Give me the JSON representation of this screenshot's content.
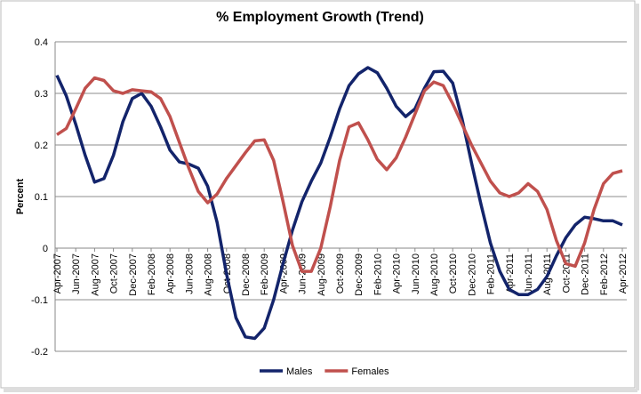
{
  "chart_data": {
    "type": "line",
    "title": "% Employment Growth (Trend)",
    "y_label": "Percent",
    "categories": [
      "Apr-2007",
      null,
      "Jun-2007",
      null,
      "Aug-2007",
      null,
      "Oct-2007",
      null,
      "Dec-2007",
      null,
      "Feb-2008",
      null,
      "Apr-2008",
      null,
      "Jun-2008",
      null,
      "Aug-2008",
      null,
      "Oct-2008",
      null,
      "Dec-2008",
      null,
      "Feb-2009",
      null,
      "Apr-2009",
      null,
      "Jun-2009",
      null,
      "Aug-2009",
      null,
      "Oct-2009",
      null,
      "Dec-2009",
      null,
      "Feb-2010",
      null,
      "Apr-2010",
      null,
      "Jun-2010",
      null,
      "Aug-2010",
      null,
      "Oct-2010",
      null,
      "Dec-2010",
      null,
      "Feb-2011",
      null,
      "Apr-2011",
      null,
      "Jun-2011",
      null,
      "Aug-2011",
      null,
      "Oct-2011",
      null,
      "Dec-2011",
      null,
      "Feb-2012",
      null,
      "Apr-2012"
    ],
    "series": [
      {
        "name": "Males",
        "color": "#13246b",
        "values": [
          0.335,
          0.295,
          0.24,
          0.18,
          0.128,
          0.135,
          0.18,
          0.245,
          0.29,
          0.3,
          0.275,
          0.235,
          0.19,
          0.167,
          0.163,
          0.155,
          0.12,
          0.05,
          -0.05,
          -0.135,
          -0.172,
          -0.175,
          -0.155,
          -0.1,
          -0.03,
          0.035,
          0.09,
          0.13,
          0.165,
          0.215,
          0.27,
          0.315,
          0.338,
          0.35,
          0.34,
          0.31,
          0.275,
          0.255,
          0.27,
          0.31,
          0.342,
          0.343,
          0.32,
          0.25,
          0.165,
          0.085,
          0.01,
          -0.045,
          -0.08,
          -0.09,
          -0.09,
          -0.08,
          -0.055,
          -0.015,
          0.02,
          0.045,
          0.06,
          0.057,
          0.053,
          0.053,
          0.045
        ]
      },
      {
        "name": "Females",
        "color": "#c0504d",
        "values": [
          0.22,
          0.232,
          0.27,
          0.31,
          0.33,
          0.325,
          0.305,
          0.3,
          0.307,
          0.305,
          0.303,
          0.29,
          0.255,
          0.205,
          0.155,
          0.11,
          0.088,
          0.105,
          0.135,
          0.16,
          0.185,
          0.208,
          0.21,
          0.17,
          0.09,
          0.005,
          -0.045,
          -0.045,
          0.0,
          0.08,
          0.17,
          0.235,
          0.243,
          0.21,
          0.172,
          0.152,
          0.175,
          0.215,
          0.26,
          0.305,
          0.322,
          0.315,
          0.28,
          0.24,
          0.2,
          0.165,
          0.13,
          0.107,
          0.1,
          0.107,
          0.125,
          0.11,
          0.075,
          0.015,
          -0.03,
          -0.035,
          0.01,
          0.075,
          0.125,
          0.145,
          0.15
        ]
      }
    ],
    "ylim": [
      -0.2,
      0.4
    ],
    "yticks": [
      -0.2,
      -0.1,
      0,
      0.1,
      0.2,
      0.3,
      0.4
    ],
    "grid": true,
    "legend": "bottom"
  }
}
